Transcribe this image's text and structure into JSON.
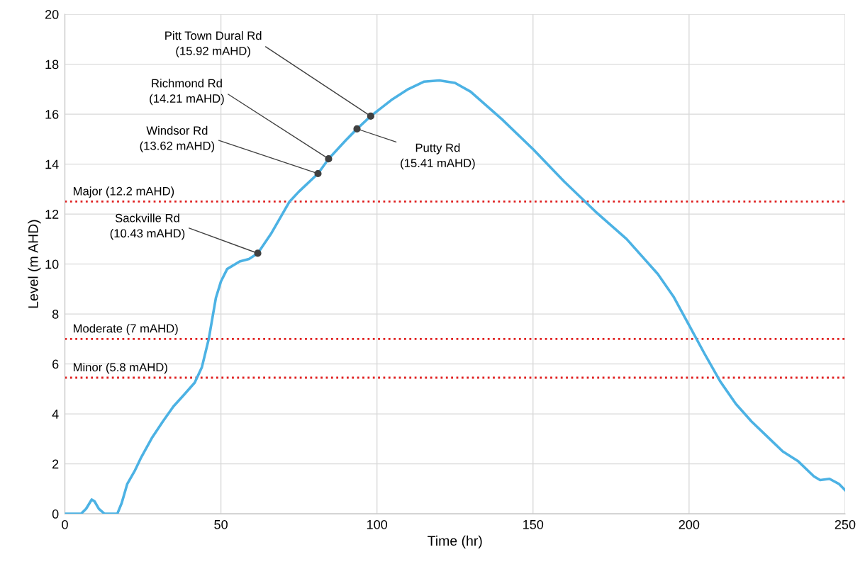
{
  "chart_data": {
    "type": "line",
    "xlabel": "Time (hr)",
    "ylabel": "Level (m AHD)",
    "xlim": [
      0,
      250
    ],
    "ylim": [
      0,
      20
    ],
    "xticks": [
      0,
      50,
      100,
      150,
      200,
      250
    ],
    "yticks": [
      0,
      2,
      4,
      6,
      8,
      10,
      12,
      14,
      16,
      18,
      20
    ],
    "grid": true,
    "legend": false,
    "series": [
      {
        "color": "#4cb2e4",
        "marker": "none",
        "x": [
          0,
          5.2,
          6.8,
          8.6,
          9.5,
          10.9,
          12.7,
          16.8,
          18.2,
          20,
          22.3,
          24.5,
          28,
          31.4,
          34.8,
          38.2,
          41.6,
          43.9,
          46.1,
          48.4,
          50,
          52,
          56,
          59,
          61.8,
          66,
          72,
          75,
          81.1,
          84.5,
          90,
          93.6,
          98,
          105,
          110,
          115,
          120,
          125,
          130,
          140,
          150,
          160,
          170,
          180,
          190,
          195,
          200,
          205,
          210,
          215,
          220,
          225,
          230,
          235,
          240,
          242,
          245,
          248,
          250
        ],
        "values": [
          0,
          0,
          0.2,
          0.57,
          0.5,
          0.2,
          0,
          0,
          0.43,
          1.2,
          1.7,
          2.27,
          3.06,
          3.7,
          4.3,
          4.77,
          5.25,
          5.87,
          7.0,
          8.65,
          9.3,
          9.8,
          10.1,
          10.2,
          10.43,
          11.2,
          12.5,
          12.9,
          13.62,
          14.21,
          14.95,
          15.41,
          15.92,
          16.6,
          17.0,
          17.3,
          17.35,
          17.25,
          16.9,
          15.8,
          14.6,
          13.3,
          12.1,
          11.0,
          9.6,
          8.7,
          7.55,
          6.4,
          5.3,
          4.4,
          3.7,
          3.1,
          2.5,
          2.1,
          1.5,
          1.35,
          1.4,
          1.2,
          0.95
        ]
      },
      {
        "type": "scatter",
        "color": "#404040",
        "marker": "circle",
        "x": [
          61.8,
          81.1,
          84.5,
          93.6,
          98
        ],
        "values": [
          10.43,
          13.62,
          14.21,
          15.41,
          15.92
        ]
      }
    ],
    "annotations": [
      {
        "text": "Sackville Rd\n(10.43 mAHD)",
        "x": 61.8,
        "y": 10.43
      },
      {
        "text": "Windsor Rd\n(13.62 mAHD)",
        "x": 81.1,
        "y": 13.62
      },
      {
        "text": "Richmond Rd\n(14.21 mAHD)",
        "x": 84.5,
        "y": 14.21
      },
      {
        "text": "Putty Rd\n(15.41 mAHD)",
        "x": 93.6,
        "y": 15.41
      },
      {
        "text": "Pitt Town Dural Rd\n(15.92 mAHD)",
        "x": 98,
        "y": 15.92
      }
    ],
    "ref_lines": [
      {
        "axis": "y",
        "value": 12.5,
        "label": "Major (12.2 mAHD)",
        "color": "#e02020",
        "line_style": "dotted"
      },
      {
        "axis": "y",
        "value": 7.0,
        "label": "Moderate (7 mAHD)",
        "color": "#e02020",
        "line_style": "dotted"
      },
      {
        "axis": "y",
        "value": 5.45,
        "label": "Minor (5.8 mAHD)",
        "color": "#e02020",
        "line_style": "dotted"
      }
    ]
  }
}
